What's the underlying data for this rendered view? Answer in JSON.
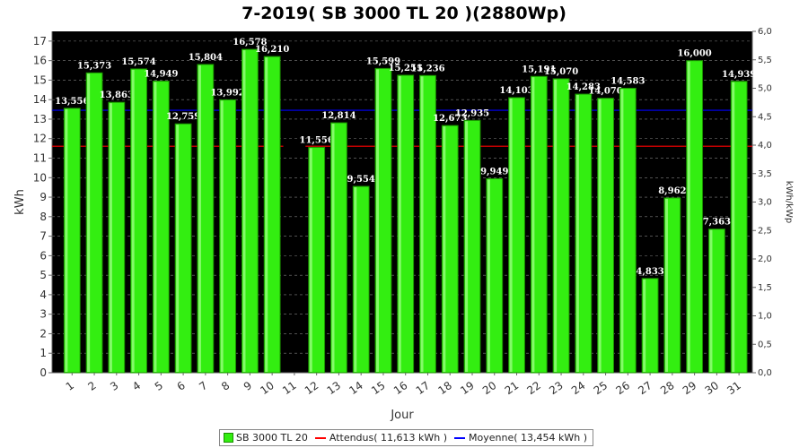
{
  "title": "7-2019( SB 3000 TL 20 )(2880Wp)",
  "colors": {
    "plot_bg": "#000000",
    "bar_fill": "#33ee11",
    "bar_edge": "#1a8f00",
    "expected_line": "#ff0000",
    "average_line": "#0000ff",
    "grid": "#808080",
    "label_text": "#ffffff"
  },
  "chart_data": {
    "type": "bar",
    "xlabel": "Jour",
    "ylabel": "kWh",
    "y2label": "kWh/kWp",
    "ylim": [
      0,
      17.5
    ],
    "y2lim": [
      0,
      6.0
    ],
    "yticks": [
      "0",
      "1",
      "2",
      "3",
      "4",
      "5",
      "6",
      "7",
      "8",
      "9",
      "10",
      "11",
      "12",
      "13",
      "14",
      "15",
      "16",
      "17"
    ],
    "y2ticks": [
      "0,0",
      "0,5",
      "1,0",
      "1,5",
      "2,0",
      "2,5",
      "3,0",
      "3,5",
      "4,0",
      "4,5",
      "5,0",
      "5,5",
      "6,0"
    ],
    "grid": true,
    "legend_position": "bottom",
    "categories": [
      "1",
      "2",
      "3",
      "4",
      "5",
      "6",
      "7",
      "8",
      "9",
      "10",
      "11",
      "12",
      "13",
      "14",
      "15",
      "16",
      "17",
      "18",
      "19",
      "20",
      "21",
      "22",
      "23",
      "24",
      "25",
      "26",
      "27",
      "28",
      "29",
      "30",
      "31"
    ],
    "series": [
      {
        "name": "SB 3000 TL 20",
        "values": [
          13.556,
          15.373,
          13.863,
          15.574,
          14.949,
          12.759,
          15.804,
          13.992,
          16.578,
          16.21,
          null,
          11.556,
          12.814,
          9.554,
          15.599,
          15.251,
          15.236,
          12.673,
          12.935,
          9.949,
          14.103,
          15.191,
          15.07,
          14.283,
          14.07,
          14.583,
          4.833,
          8.962,
          16.0,
          7.363,
          14.939
        ],
        "data_labels": [
          "13,556",
          "15,373",
          "13,863",
          "15,574",
          "14,949",
          "12,759",
          "15,804",
          "13,992",
          "16,578",
          "16,210",
          "",
          "11,556",
          "12,814",
          "9,554",
          "15,599",
          "15,251",
          "15,236",
          "12,673",
          "12,935",
          "9,949",
          "14,103",
          "15,191",
          "15,070",
          "14,283",
          "14,070",
          "14,583",
          "4,833",
          "8,962",
          "16,000",
          "7,363",
          "14,939"
        ]
      }
    ],
    "reference_lines": [
      {
        "name": "Attendus( 11,613 kWh )",
        "value": 11.613,
        "color": "#ff0000",
        "gap_days": [
          11
        ]
      },
      {
        "name": "Moyenne( 13,454 kWh )",
        "value": 13.454,
        "color": "#0000ff",
        "gap_days": []
      }
    ]
  }
}
